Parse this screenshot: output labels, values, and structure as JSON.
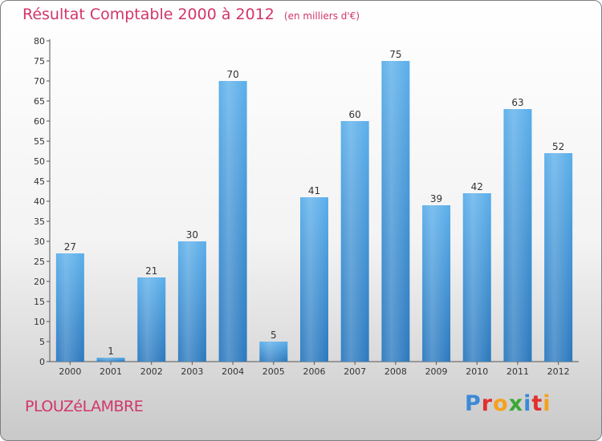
{
  "chart_data": {
    "type": "bar",
    "title": "Résultat Comptable 2000 à 2012",
    "subtitle": "(en milliers d'€)",
    "categories": [
      "2000",
      "2001",
      "2002",
      "2003",
      "2004",
      "2005",
      "2006",
      "2007",
      "2008",
      "2009",
      "2010",
      "2011",
      "2012"
    ],
    "values": [
      27,
      1,
      21,
      30,
      70,
      5,
      41,
      60,
      75,
      39,
      42,
      63,
      52
    ],
    "xlabel": "",
    "ylabel": "",
    "ylim": [
      0,
      80
    ],
    "ytick_step": 5,
    "grid": false,
    "bar_color": "#4a9fe0"
  },
  "commune": "PLOUZéLAMBRE",
  "brand": {
    "name": "Proxiti",
    "letters": [
      {
        "char": "P",
        "color": "#3a8ad8"
      },
      {
        "char": "r",
        "color": "#e0302f"
      },
      {
        "char": "o",
        "color": "#f4a11c"
      },
      {
        "char": "x",
        "color": "#3aa935"
      },
      {
        "char": "i",
        "color": "#3a8ad8"
      },
      {
        "char": "t",
        "color": "#e0302f"
      },
      {
        "char": "i",
        "color": "#f4a11c"
      }
    ]
  }
}
